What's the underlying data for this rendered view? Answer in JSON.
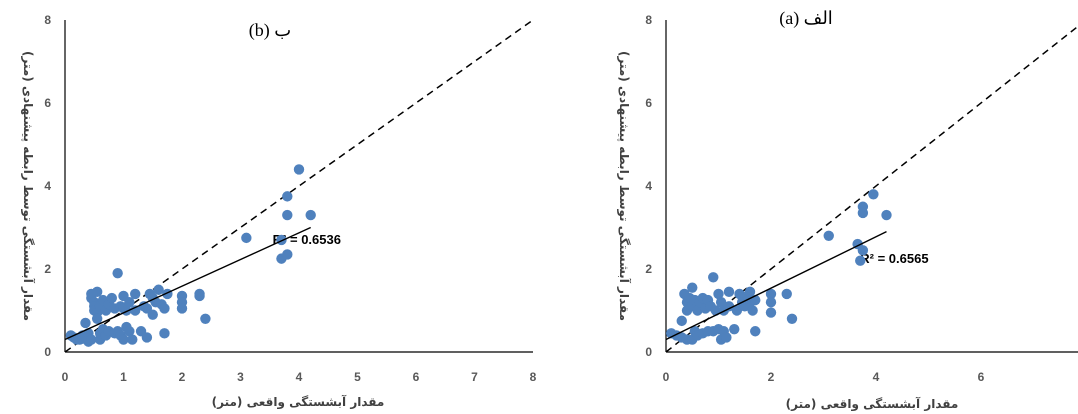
{
  "chart_data": [
    {
      "type": "scatter",
      "panel_label": "ب (b)",
      "xlabel": "مقدار آبشستگی واقعی (متر)",
      "ylabel": "مقدار آبشستگی توسط رابطه پیشنهادی (متر)",
      "xlim": [
        0,
        8
      ],
      "ylim": [
        0,
        8
      ],
      "x_ticks": [
        "0",
        "1",
        "2",
        "3",
        "4",
        "5",
        "6",
        "7",
        "8"
      ],
      "y_ticks": [
        "0",
        "2",
        "4",
        "6",
        "8"
      ],
      "grid": false,
      "point_color": "#4f81bd",
      "reference_line": {
        "style": "dashed",
        "from": [
          0,
          0
        ],
        "to": [
          8,
          8
        ]
      },
      "trendline": {
        "from": [
          0,
          0.3
        ],
        "to": [
          4.2,
          3.0
        ]
      },
      "r2_label": "R² = 0.6536",
      "r2_anchor": [
        3.55,
        2.6
      ],
      "points": [
        [
          0.1,
          0.4
        ],
        [
          0.15,
          0.35
        ],
        [
          0.2,
          0.3
        ],
        [
          0.25,
          0.3
        ],
        [
          0.3,
          0.32
        ],
        [
          0.3,
          0.4
        ],
        [
          0.35,
          0.7
        ],
        [
          0.4,
          0.45
        ],
        [
          0.4,
          0.25
        ],
        [
          0.45,
          0.3
        ],
        [
          0.45,
          1.3
        ],
        [
          0.45,
          1.4
        ],
        [
          0.5,
          1.2
        ],
        [
          0.5,
          1.1
        ],
        [
          0.5,
          1.0
        ],
        [
          0.55,
          0.95
        ],
        [
          0.55,
          1.45
        ],
        [
          0.55,
          0.8
        ],
        [
          0.6,
          0.3
        ],
        [
          0.6,
          0.45
        ],
        [
          0.6,
          1.1
        ],
        [
          0.65,
          1.25
        ],
        [
          0.65,
          0.55
        ],
        [
          0.7,
          0.4
        ],
        [
          0.7,
          1.0
        ],
        [
          0.75,
          1.15
        ],
        [
          0.75,
          0.5
        ],
        [
          0.8,
          1.3
        ],
        [
          0.85,
          0.45
        ],
        [
          0.85,
          1.05
        ],
        [
          0.9,
          1.9
        ],
        [
          0.9,
          0.5
        ],
        [
          0.95,
          0.4
        ],
        [
          0.95,
          1.1
        ],
        [
          1.0,
          1.35
        ],
        [
          1.0,
          0.3
        ],
        [
          1.0,
          1.05
        ],
        [
          1.05,
          0.6
        ],
        [
          1.05,
          1.0
        ],
        [
          1.1,
          1.2
        ],
        [
          1.1,
          0.5
        ],
        [
          1.15,
          0.3
        ],
        [
          1.2,
          1.0
        ],
        [
          1.2,
          1.4
        ],
        [
          1.3,
          0.5
        ],
        [
          1.35,
          1.1
        ],
        [
          1.4,
          1.05
        ],
        [
          1.4,
          0.35
        ],
        [
          1.45,
          1.4
        ],
        [
          1.5,
          0.9
        ],
        [
          1.5,
          1.3
        ],
        [
          1.55,
          1.2
        ],
        [
          1.6,
          1.5
        ],
        [
          1.65,
          1.15
        ],
        [
          1.7,
          1.05
        ],
        [
          1.7,
          0.45
        ],
        [
          1.75,
          1.4
        ],
        [
          2.0,
          1.35
        ],
        [
          2.0,
          1.2
        ],
        [
          2.0,
          1.05
        ],
        [
          2.3,
          1.35
        ],
        [
          2.3,
          1.4
        ],
        [
          2.4,
          0.8
        ],
        [
          3.1,
          2.75
        ],
        [
          3.7,
          2.7
        ],
        [
          3.7,
          2.25
        ],
        [
          3.8,
          2.35
        ],
        [
          3.8,
          3.3
        ],
        [
          3.8,
          3.75
        ],
        [
          4.0,
          4.4
        ],
        [
          4.2,
          3.3
        ]
      ]
    },
    {
      "type": "scatter",
      "panel_label": "الف (a)",
      "xlabel": "مقدار آبشستگی واقعی (متر)",
      "ylabel": "مقدار آبشستگی توسط رابطه پیشنهادی (متر)",
      "xlim": [
        0,
        8
      ],
      "ylim": [
        0,
        8
      ],
      "x_ticks": [
        "0",
        "2",
        "4",
        "6"
      ],
      "y_ticks": [
        "0",
        "2",
        "4",
        "6",
        "8"
      ],
      "grid": false,
      "point_color": "#4f81bd",
      "reference_line": {
        "style": "dashed",
        "from": [
          0,
          0
        ],
        "to": [
          8,
          8
        ]
      },
      "trendline": {
        "from": [
          0,
          0.3
        ],
        "to": [
          4.2,
          2.9
        ]
      },
      "r2_label": "R² = 0.6565",
      "r2_anchor": [
        3.7,
        2.15
      ],
      "points": [
        [
          0.1,
          0.45
        ],
        [
          0.2,
          0.4
        ],
        [
          0.3,
          0.35
        ],
        [
          0.3,
          0.75
        ],
        [
          0.35,
          1.4
        ],
        [
          0.4,
          1.2
        ],
        [
          0.4,
          1.0
        ],
        [
          0.4,
          0.3
        ],
        [
          0.45,
          1.3
        ],
        [
          0.5,
          0.3
        ],
        [
          0.5,
          1.55
        ],
        [
          0.5,
          1.1
        ],
        [
          0.55,
          0.5
        ],
        [
          0.55,
          1.25
        ],
        [
          0.6,
          1.0
        ],
        [
          0.6,
          0.4
        ],
        [
          0.65,
          1.2
        ],
        [
          0.7,
          0.45
        ],
        [
          0.7,
          1.3
        ],
        [
          0.75,
          1.05
        ],
        [
          0.8,
          0.5
        ],
        [
          0.8,
          1.25
        ],
        [
          0.85,
          1.1
        ],
        [
          0.9,
          1.8
        ],
        [
          0.9,
          0.5
        ],
        [
          0.95,
          1.0
        ],
        [
          1.0,
          1.4
        ],
        [
          1.0,
          0.55
        ],
        [
          1.05,
          1.2
        ],
        [
          1.05,
          0.3
        ],
        [
          1.1,
          1.0
        ],
        [
          1.1,
          0.5
        ],
        [
          1.15,
          0.35
        ],
        [
          1.2,
          1.45
        ],
        [
          1.2,
          1.1
        ],
        [
          1.3,
          0.55
        ],
        [
          1.35,
          1.0
        ],
        [
          1.4,
          1.4
        ],
        [
          1.45,
          1.2
        ],
        [
          1.5,
          1.1
        ],
        [
          1.55,
          1.35
        ],
        [
          1.6,
          1.45
        ],
        [
          1.6,
          1.2
        ],
        [
          1.65,
          1.0
        ],
        [
          1.7,
          0.5
        ],
        [
          1.7,
          1.25
        ],
        [
          2.0,
          1.4
        ],
        [
          2.0,
          1.2
        ],
        [
          2.0,
          0.95
        ],
        [
          2.3,
          1.4
        ],
        [
          2.4,
          0.8
        ],
        [
          3.1,
          2.8
        ],
        [
          3.65,
          2.6
        ],
        [
          3.7,
          2.2
        ],
        [
          3.75,
          2.45
        ],
        [
          3.75,
          3.35
        ],
        [
          3.75,
          3.5
        ],
        [
          3.95,
          3.8
        ],
        [
          4.2,
          3.3
        ]
      ]
    }
  ]
}
